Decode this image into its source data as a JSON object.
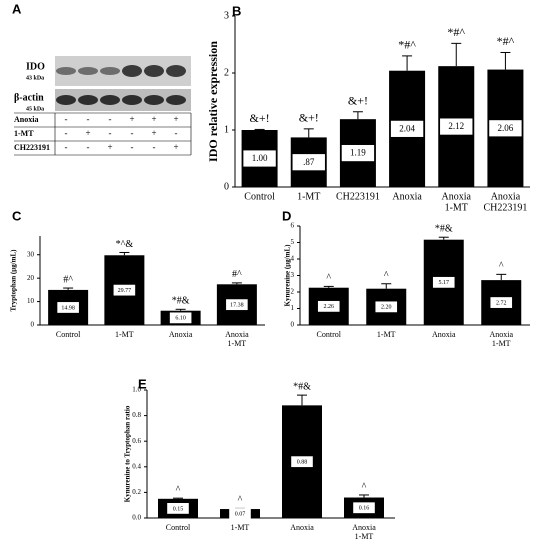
{
  "blot": {
    "panel": "A",
    "target": "IDO",
    "target_size": "43 kDa",
    "control": "β-actin",
    "control_size": "45 kDa",
    "conditions": [
      {
        "name": "Anoxia",
        "signs": [
          "-",
          "-",
          "-",
          "+",
          "+",
          "+"
        ]
      },
      {
        "name": "1-MT",
        "signs": [
          "-",
          "+",
          "-",
          "-",
          "+",
          "-"
        ]
      },
      {
        "name": "CH223191",
        "signs": [
          "-",
          "-",
          "+",
          "-",
          "-",
          "+"
        ]
      }
    ]
  },
  "chart_data": [
    {
      "type": "bar",
      "panel": "B",
      "ylabel": "IDO relative expression",
      "color": "#000000",
      "categories": [
        [
          "Control"
        ],
        [
          "1-MT"
        ],
        [
          "CH223191"
        ],
        [
          "Anoxia"
        ],
        [
          "Anoxia",
          "1-MT"
        ],
        [
          "Anoxia",
          "CH223191"
        ]
      ],
      "values": [
        1.0,
        0.87,
        1.19,
        2.04,
        2.12,
        2.06
      ],
      "value_labels": [
        "1.00",
        ".87",
        "1.19",
        "2.04",
        "2.12",
        "2.06"
      ],
      "errors": [
        0.01,
        0.15,
        0.13,
        0.26,
        0.4,
        0.3
      ],
      "annotations": [
        "&+!",
        "&+!",
        "&+!",
        "*#^",
        "*#^",
        "*#^"
      ],
      "ylim": [
        0,
        3
      ],
      "yticks": [
        0,
        1,
        2,
        3
      ]
    },
    {
      "type": "bar",
      "panel": "C",
      "ylabel": "Tryptophan (μg/mL)",
      "color": "#000000",
      "categories": [
        [
          "Control"
        ],
        [
          "1-MT"
        ],
        [
          "Anoxia"
        ],
        [
          "Anoxia",
          "1-MT"
        ]
      ],
      "values": [
        14.98,
        29.77,
        6.1,
        17.38
      ],
      "value_labels": [
        "14.98",
        "29.77",
        "6.10",
        "17.38"
      ],
      "errors": [
        0.8,
        1.2,
        0.6,
        0.6
      ],
      "annotations": [
        "#^",
        "*^&",
        "*#&",
        "#^"
      ],
      "ylim": [
        0,
        38
      ],
      "yticks": [
        0,
        10,
        20,
        30
      ]
    },
    {
      "type": "bar",
      "panel": "D",
      "ylabel": "Kynurenine (μg/mL)",
      "color": "#000000",
      "categories": [
        [
          "Control"
        ],
        [
          "1-MT"
        ],
        [
          "Anoxia"
        ],
        [
          "Anoxia",
          "1-MT"
        ]
      ],
      "values": [
        2.26,
        2.2,
        5.17,
        2.72
      ],
      "value_labels": [
        "2.26",
        "2.20",
        "5.17",
        "2.72"
      ],
      "errors": [
        0.08,
        0.3,
        0.15,
        0.35
      ],
      "annotations": [
        "^",
        "^",
        "*#&",
        "^"
      ],
      "ylim": [
        0,
        6
      ],
      "yticks": [
        0,
        1,
        2,
        3,
        4,
        5,
        6
      ]
    },
    {
      "type": "bar",
      "panel": "E",
      "ylabel": "Kynurenine to Tryptophan ratio",
      "color": "#000000",
      "categories": [
        [
          "Control"
        ],
        [
          "1-MT"
        ],
        [
          "Anoxia"
        ],
        [
          "Anoxia",
          "1-MT"
        ]
      ],
      "values": [
        0.15,
        0.07,
        0.88,
        0.16
      ],
      "value_labels": [
        "0.15",
        "0.07",
        "0.88",
        "0.16"
      ],
      "errors": [
        0.005,
        0.005,
        0.08,
        0.02
      ],
      "annotations": [
        "^",
        "^",
        "*#&",
        "^"
      ],
      "ylim": [
        0,
        1.0
      ],
      "yticks": [
        {
          "value": 0,
          "label": "0.0"
        },
        0.2,
        0.4,
        0.6,
        0.8,
        {
          "value": 1,
          "label": "1.0"
        }
      ]
    }
  ]
}
